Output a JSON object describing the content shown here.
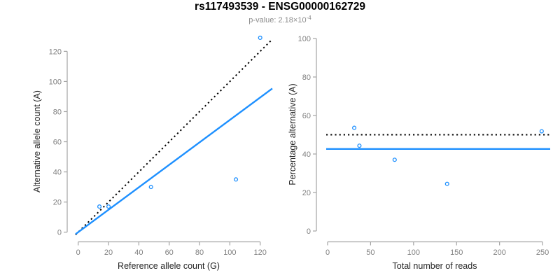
{
  "header": {
    "title": "rs117493539 - ENSG00000162729",
    "subtitle_prefix": "p-value: 2.18×10",
    "subtitle_exponent": "-4"
  },
  "colors": {
    "accent_blue": "#1E90FF",
    "line_black": "#000000",
    "axis_stroke": "#A3A3A3",
    "tick_label": "#808080",
    "axis_title": "#262626",
    "title": "#000000",
    "subtitle": "#8C8C8C",
    "background": "#FFFFFF"
  },
  "chart_data": [
    {
      "type": "scatter",
      "title": "",
      "xlabel": "Reference allele count (G)",
      "ylabel": "Alternative allele count (A)",
      "xlim": [
        0,
        127
      ],
      "ylim": [
        0,
        130
      ],
      "xticks": [
        0,
        20,
        40,
        60,
        80,
        100,
        120
      ],
      "yticks": [
        0,
        20,
        40,
        60,
        80,
        100,
        120
      ],
      "grid": false,
      "legend": "none",
      "marker": "open-circle",
      "points": [
        {
          "x": 14,
          "y": 17
        },
        {
          "x": 20,
          "y": 17
        },
        {
          "x": 48,
          "y": 30
        },
        {
          "x": 104,
          "y": 35
        },
        {
          "x": 120,
          "y": 129
        }
      ],
      "lines": [
        {
          "name": "identity-line",
          "kind": "abline",
          "slope": 1,
          "intercept": 0,
          "style": "dotted",
          "color": "#000000"
        },
        {
          "name": "fit-line",
          "kind": "abline",
          "slope": 0.745,
          "intercept": 0,
          "style": "solid",
          "color": "#1E90FF"
        }
      ]
    },
    {
      "type": "scatter",
      "title": "",
      "xlabel": "Total number of reads",
      "ylabel": "Percentage alternative (A)",
      "xlim": [
        0,
        260
      ],
      "ylim": [
        0,
        100
      ],
      "xticks": [
        0,
        50,
        100,
        150,
        200,
        250
      ],
      "yticks": [
        0,
        20,
        40,
        60,
        80,
        100
      ],
      "grid": false,
      "legend": "none",
      "marker": "open-circle",
      "points": [
        {
          "x": 31,
          "y": 53.6
        },
        {
          "x": 37,
          "y": 44.3
        },
        {
          "x": 78,
          "y": 37.0
        },
        {
          "x": 139,
          "y": 24.5
        },
        {
          "x": 249,
          "y": 51.8
        }
      ],
      "lines": [
        {
          "name": "expected-50-line",
          "kind": "hline",
          "y": 50,
          "style": "dotted",
          "color": "#000000"
        },
        {
          "name": "mean-percentage-line",
          "kind": "hline",
          "y": 42.6,
          "style": "solid",
          "color": "#1E90FF"
        }
      ]
    }
  ]
}
